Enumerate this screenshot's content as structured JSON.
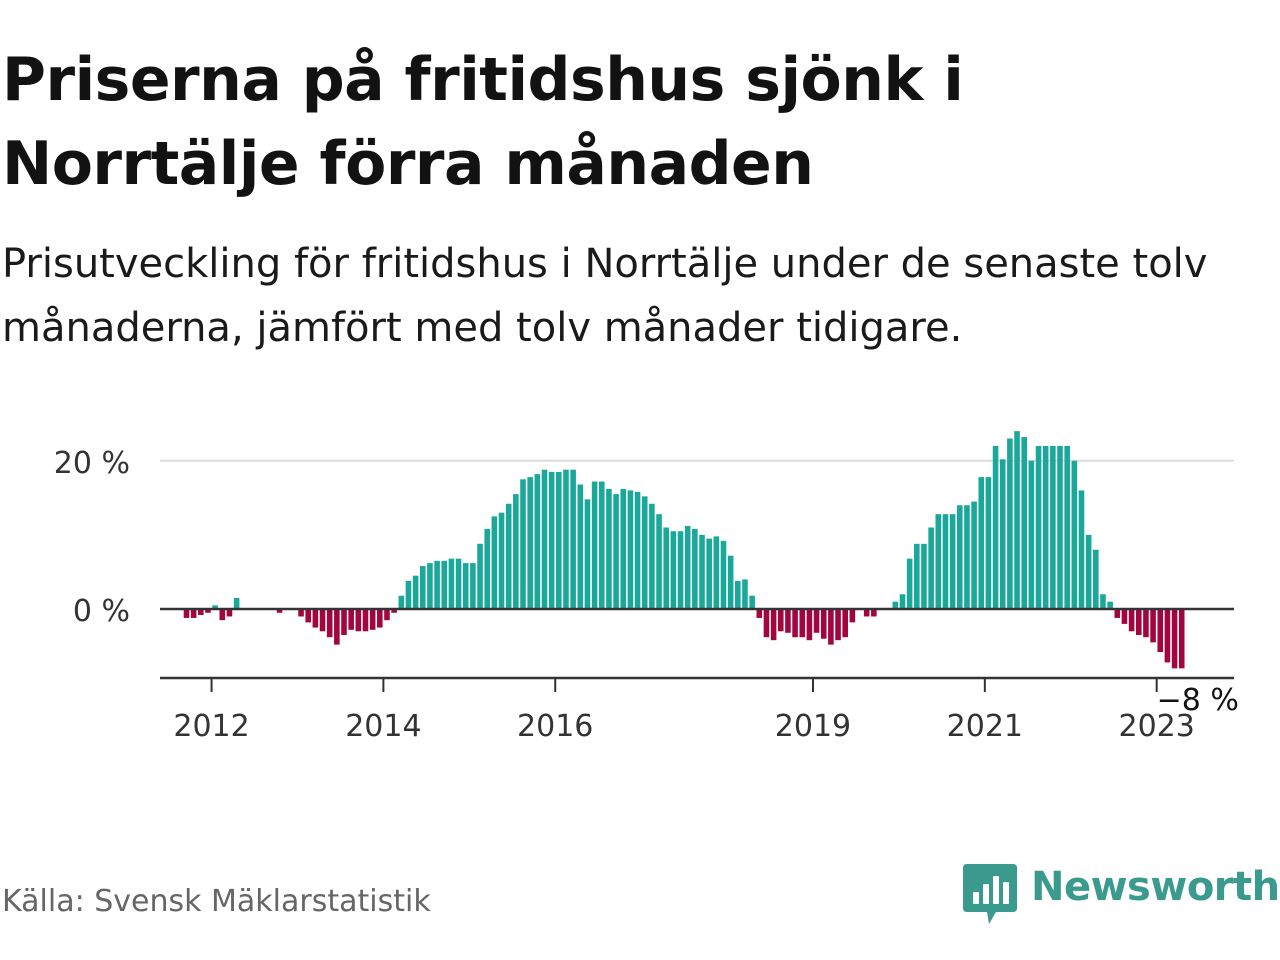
{
  "title": "Priserna på fritidshus sjönk i Norrtälje förra månaden",
  "subtitle": "Prisutveckling för fritidshus i Norrtälje under de senaste tolv månaderna, jämfört med tolv månader tidigare.",
  "source": "Källa: Svensk Mäklarstatistik",
  "brand": {
    "name": "Newsworthy",
    "icon": "newsworthy-logo-icon",
    "color": "#3a9a8e"
  },
  "colors": {
    "positive": "#1aa89a",
    "negative": "#a3063f",
    "axis": "#333333",
    "grid": "#dddddd"
  },
  "chart_data": {
    "type": "bar",
    "title": "Priserna på fritidshus sjönk i Norrtälje förra månaden",
    "unit": "%",
    "ylim": [
      -9.3,
      25.5
    ],
    "yticks": [
      0,
      20
    ],
    "ytick_labels": [
      "0 %",
      "20 %"
    ],
    "grid": true,
    "x_start": "2011-01",
    "x_ticks": [
      {
        "label": "2012",
        "x": 2012.0
      },
      {
        "label": "2014",
        "x": 2014.0
      },
      {
        "label": "2016",
        "x": 2016.0
      },
      {
        "label": "2019",
        "x": 2019.0
      },
      {
        "label": "2021",
        "x": 2021.0
      },
      {
        "label": "2023",
        "x": 2023.0
      }
    ],
    "x_range": [
      2011.4,
      2023.9
    ],
    "last_value_label": "−8 %",
    "values": [
      null,
      null,
      null,
      null,
      null,
      null,
      null,
      null,
      -1.2,
      -1.2,
      -0.8,
      -0.5,
      0.5,
      -1.5,
      -1.0,
      1.5,
      null,
      null,
      null,
      null,
      null,
      -0.5,
      null,
      null,
      -1.0,
      -1.8,
      -2.5,
      -3.0,
      -3.8,
      -4.8,
      -3.5,
      -2.8,
      -3.0,
      -3.0,
      -2.8,
      -2.5,
      -1.5,
      -0.5,
      1.8,
      3.8,
      4.5,
      5.8,
      6.2,
      6.5,
      6.5,
      6.8,
      6.8,
      6.2,
      6.2,
      8.8,
      10.8,
      12.5,
      13.0,
      14.2,
      15.5,
      17.5,
      17.8,
      18.2,
      18.8,
      18.5,
      18.5,
      18.8,
      18.8,
      16.8,
      14.8,
      17.2,
      17.2,
      16.2,
      15.5,
      16.2,
      16.0,
      15.8,
      15.2,
      14.2,
      12.8,
      11.0,
      10.5,
      10.5,
      11.2,
      10.8,
      10.0,
      9.5,
      9.8,
      9.2,
      7.2,
      3.8,
      4.0,
      1.8,
      -1.2,
      -3.8,
      -4.2,
      -3.0,
      -3.2,
      -3.8,
      -3.8,
      -4.2,
      -3.2,
      -4.0,
      -4.8,
      -4.2,
      -3.8,
      -1.8,
      null,
      -1.0,
      -1.0,
      null,
      null,
      1.0,
      2.0,
      6.8,
      8.8,
      8.8,
      11.0,
      12.8,
      12.8,
      12.8,
      14.0,
      14.0,
      14.5,
      17.8,
      17.8,
      22.0,
      20.2,
      23.0,
      24.0,
      23.2,
      20.0,
      22.0,
      22.0,
      22.0,
      22.0,
      22.0,
      20.0,
      16.0,
      10.0,
      8.0,
      2.0,
      1.0,
      -1.2,
      -2.0,
      -3.0,
      -3.5,
      -3.8,
      -4.5,
      -5.8,
      -7.2,
      -8.0,
      -8.0
    ]
  }
}
